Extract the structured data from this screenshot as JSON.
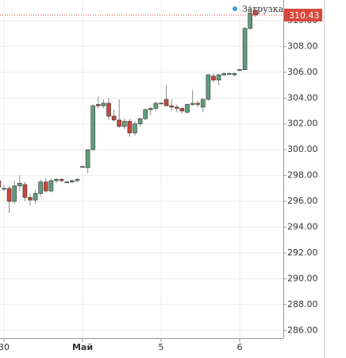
{
  "chart_data": {
    "type": "candlestick",
    "status_label": "Загрузка",
    "last_price": 310.43,
    "categories": [
      null,
      "30",
      null,
      null,
      null,
      null,
      null,
      null,
      null,
      null,
      null,
      null,
      null,
      null,
      null,
      null,
      "Май",
      null,
      null,
      null,
      null,
      null,
      null,
      null,
      null,
      null,
      null,
      null,
      null,
      null,
      null,
      "5",
      null,
      null,
      null,
      null,
      null,
      null,
      null,
      null,
      null,
      null,
      null,
      null,
      null,
      null,
      "6",
      null,
      null,
      null
    ],
    "open": [
      297.6,
      297.0,
      297.0,
      296.0,
      297.2,
      297.3,
      296.3,
      296.1,
      296.6,
      297.5,
      296.8,
      297.6,
      297.7,
      297.5,
      297.5,
      297.6,
      298.7,
      298.6,
      300.0,
      303.5,
      303.4,
      303.6,
      302.6,
      302.3,
      301.8,
      302.2,
      301.3,
      302.0,
      302.4,
      303.1,
      303.2,
      303.6,
      303.9,
      303.4,
      303.3,
      303.2,
      302.9,
      303.5,
      303.6,
      303.3,
      303.9,
      305.7,
      305.4,
      305.8,
      305.9,
      305.8,
      306.2,
      306.2,
      309.4,
      310.8
    ],
    "high": [
      297.8,
      297.3,
      297.2,
      297.6,
      298.0,
      297.5,
      296.6,
      296.9,
      297.7,
      297.8,
      297.8,
      297.8,
      297.8,
      297.6,
      297.7,
      297.8,
      298.8,
      300.0,
      303.5,
      304.1,
      303.9,
      304.0,
      303.1,
      303.9,
      302.4,
      302.4,
      302.2,
      302.5,
      303.2,
      303.3,
      303.7,
      303.7,
      305.0,
      303.9,
      303.5,
      303.3,
      303.6,
      304.6,
      303.8,
      304.0,
      305.9,
      305.9,
      305.9,
      306.0,
      306.0,
      306.0,
      306.3,
      309.5,
      311.2,
      311.0
    ],
    "low": [
      297.0,
      296.8,
      295.1,
      295.8,
      296.8,
      296.0,
      295.7,
      295.8,
      296.4,
      296.7,
      296.7,
      297.4,
      297.5,
      297.4,
      297.4,
      297.5,
      298.6,
      298.2,
      300.0,
      303.2,
      303.2,
      302.3,
      302.2,
      301.7,
      301.6,
      301.0,
      301.1,
      301.8,
      302.3,
      302.7,
      303.0,
      303.5,
      303.4,
      303.0,
      302.9,
      302.8,
      302.8,
      303.4,
      303.3,
      302.9,
      303.8,
      305.2,
      305.0,
      305.7,
      305.8,
      305.7,
      306.1,
      306.2,
      309.3,
      310.3
    ],
    "close": [
      297.1,
      297.0,
      296.0,
      297.2,
      297.4,
      296.3,
      296.1,
      296.6,
      297.5,
      296.8,
      297.6,
      297.7,
      297.6,
      297.5,
      297.6,
      297.7,
      298.7,
      300.0,
      303.4,
      303.4,
      303.6,
      302.6,
      302.3,
      301.8,
      302.2,
      301.3,
      302.0,
      302.4,
      303.1,
      303.2,
      303.6,
      303.6,
      303.4,
      303.3,
      303.2,
      303.0,
      303.5,
      303.6,
      303.5,
      303.9,
      305.8,
      305.4,
      305.8,
      305.9,
      305.9,
      305.9,
      306.2,
      309.4,
      310.6,
      310.43
    ],
    "up_color": "#5f9e7c",
    "down_color": "#c9473b",
    "last_price_color": "#d9473b",
    "status_color": "#3aa0dc",
    "ylim": [
      285.4,
      311.6
    ],
    "yticks": [
      {
        "value": 286,
        "label": "286.00"
      },
      {
        "value": 288,
        "label": "288.00"
      },
      {
        "value": 290,
        "label": "290.00"
      },
      {
        "value": 292,
        "label": "292.00"
      },
      {
        "value": 294,
        "label": "294.00"
      },
      {
        "value": 296,
        "label": "296.00"
      },
      {
        "value": 298,
        "label": "298.00"
      },
      {
        "value": 300,
        "label": "300.00"
      },
      {
        "value": 302,
        "label": "302.00"
      },
      {
        "value": 304,
        "label": "304.00"
      },
      {
        "value": 306,
        "label": "306.00"
      },
      {
        "value": 308,
        "label": "308.00"
      },
      {
        "value": 310,
        "label": "310.00"
      }
    ],
    "grid": true
  }
}
